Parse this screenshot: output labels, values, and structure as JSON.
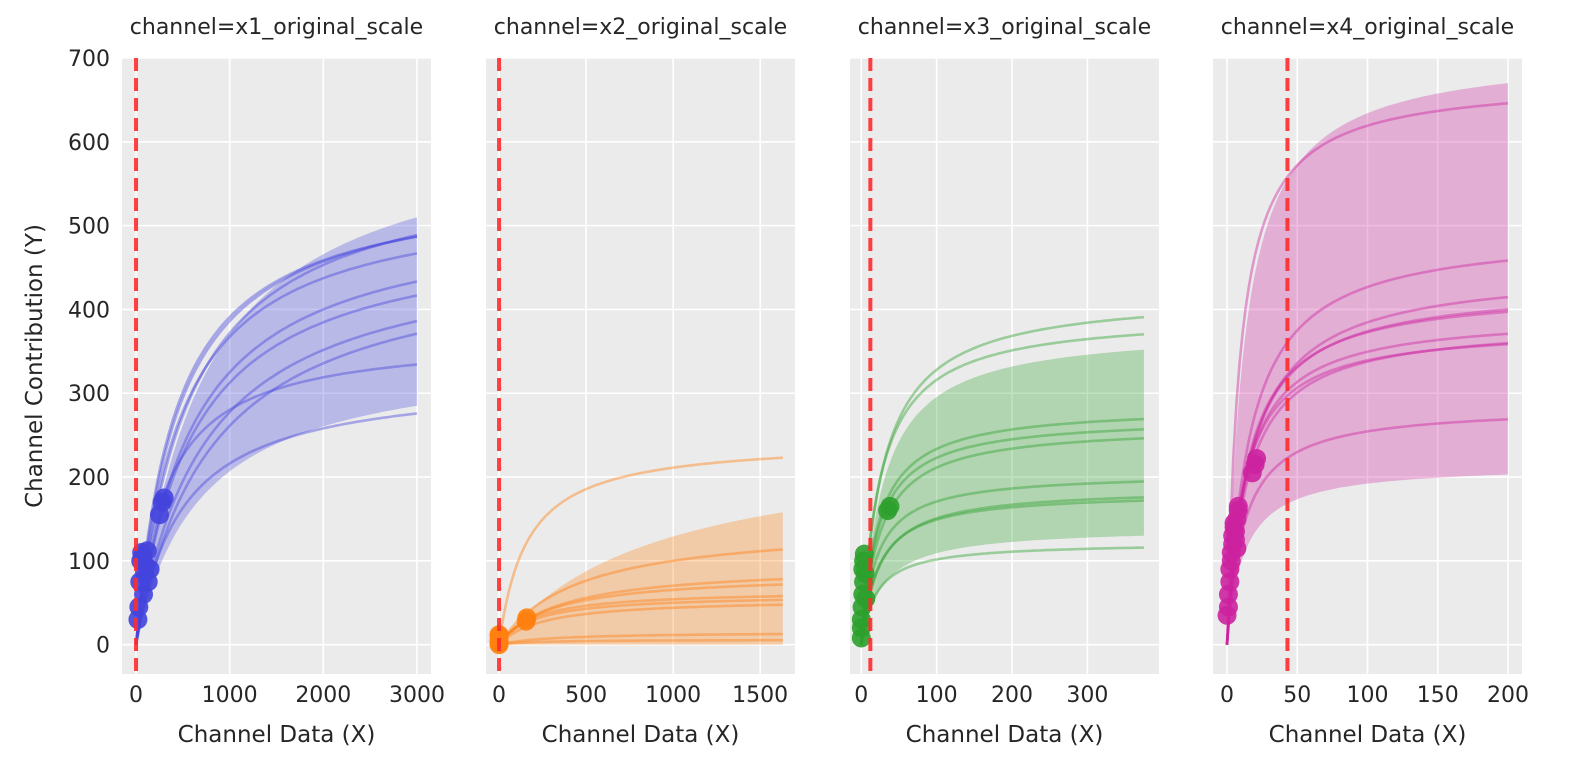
{
  "chart_data": [
    {
      "type": "line",
      "title": "channel=x1_original_scale",
      "xlabel": "Channel Data (X)",
      "ylabel": "Channel Contribution (Y)",
      "xlim": [
        -150,
        3150
      ],
      "ylim": [
        -35,
        700
      ],
      "xticks": [
        0,
        1000,
        2000,
        3000
      ],
      "yticks": [
        0,
        100,
        200,
        300,
        400,
        500,
        600,
        700
      ],
      "grid": true,
      "color": "#4444dd",
      "x_max": 3000,
      "reference_line_x": 0,
      "band": {
        "lower_end": 285,
        "upper_end": 510,
        "k": 700
      },
      "curves": [
        {
          "asymptote": 560,
          "k": 450
        },
        {
          "asymptote": 555,
          "k": 420
        },
        {
          "asymptote": 580,
          "k": 560
        },
        {
          "asymptote": 540,
          "k": 470
        },
        {
          "asymptote": 520,
          "k": 600
        },
        {
          "asymptote": 500,
          "k": 600
        },
        {
          "asymptote": 480,
          "k": 730
        },
        {
          "asymptote": 470,
          "k": 800
        },
        {
          "asymptote": 370,
          "k": 320
        },
        {
          "asymptote": 320,
          "k": 480
        }
      ],
      "points": [
        [
          20,
          30
        ],
        [
          30,
          45
        ],
        [
          40,
          75
        ],
        [
          50,
          100
        ],
        [
          60,
          110
        ],
        [
          70,
          105
        ],
        [
          80,
          60
        ],
        [
          90,
          85
        ],
        [
          100,
          95
        ],
        [
          120,
          112
        ],
        [
          130,
          75
        ],
        [
          150,
          90
        ],
        [
          250,
          155
        ],
        [
          280,
          170
        ],
        [
          300,
          175
        ]
      ]
    },
    {
      "type": "line",
      "title": "channel=x2_original_scale",
      "xlabel": "Channel Data (X)",
      "ylabel": "",
      "xlim": [
        -75,
        1700
      ],
      "ylim": [
        -35,
        700
      ],
      "xticks": [
        0,
        500,
        1000,
        1500
      ],
      "yticks": [
        0,
        100,
        200,
        300,
        400,
        500,
        600,
        700
      ],
      "grid": true,
      "color": "#ff7f0e",
      "x_max": 1630,
      "reference_line_x": 0,
      "band": {
        "lower_end": 0,
        "upper_end": 158,
        "k": 900
      },
      "curves": [
        {
          "asymptote": 245,
          "k": 160
        },
        {
          "asymptote": 145,
          "k": 450
        },
        {
          "asymptote": 95,
          "k": 350
        },
        {
          "asymptote": 85,
          "k": 300
        },
        {
          "asymptote": 65,
          "k": 200
        },
        {
          "asymptote": 60,
          "k": 200
        },
        {
          "asymptote": 55,
          "k": 250
        },
        {
          "asymptote": 15,
          "k": 300
        },
        {
          "asymptote": 6,
          "k": 200
        }
      ],
      "points": [
        [
          0,
          0
        ],
        [
          0,
          2
        ],
        [
          0,
          5
        ],
        [
          0,
          10
        ],
        [
          0,
          12
        ],
        [
          155,
          28
        ],
        [
          160,
          32
        ]
      ]
    },
    {
      "type": "line",
      "title": "channel=x3_original_scale",
      "xlabel": "Channel Data (X)",
      "ylabel": "",
      "xlim": [
        -15,
        395
      ],
      "ylim": [
        -35,
        700
      ],
      "xticks": [
        0,
        100,
        200,
        300
      ],
      "yticks": [
        0,
        100,
        200,
        300,
        400,
        500,
        600,
        700
      ],
      "grid": true,
      "color": "#2ca02c",
      "x_max": 375,
      "reference_line_x": 12,
      "band": {
        "lower_end": 130,
        "upper_end": 352,
        "k": 28
      },
      "curves": [
        {
          "asymptote": 420,
          "k": 28
        },
        {
          "asymptote": 395,
          "k": 25
        },
        {
          "asymptote": 285,
          "k": 22
        },
        {
          "asymptote": 272,
          "k": 22
        },
        {
          "asymptote": 262,
          "k": 24
        },
        {
          "asymptote": 205,
          "k": 20
        },
        {
          "asymptote": 187,
          "k": 24
        },
        {
          "asymptote": 182,
          "k": 22
        },
        {
          "asymptote": 122,
          "k": 20
        }
      ],
      "points": [
        [
          0,
          8
        ],
        [
          0,
          20
        ],
        [
          0,
          30
        ],
        [
          1,
          45
        ],
        [
          2,
          60
        ],
        [
          3,
          75
        ],
        [
          2,
          90
        ],
        [
          3,
          100
        ],
        [
          4,
          108
        ],
        [
          5,
          85
        ],
        [
          6,
          55
        ],
        [
          35,
          160
        ],
        [
          38,
          165
        ]
      ]
    },
    {
      "type": "line",
      "title": "channel=x4_original_scale",
      "xlabel": "Channel Data (X)",
      "ylabel": "",
      "xlim": [
        -10,
        210
      ],
      "ylim": [
        -35,
        700
      ],
      "xticks": [
        0,
        50,
        100,
        150,
        200
      ],
      "yticks": [
        0,
        100,
        200,
        300,
        400,
        500,
        600,
        700
      ],
      "grid": true,
      "color": "#cc22a0",
      "x_max": 200,
      "reference_line_x": 43,
      "band": {
        "lower_end": 203,
        "upper_end": 670,
        "k": 12
      },
      "curves": [
        {
          "asymptote": 675,
          "k": 9
        },
        {
          "asymptote": 495,
          "k": 16
        },
        {
          "asymptote": 450,
          "k": 17
        },
        {
          "asymptote": 430,
          "k": 15
        },
        {
          "asymptote": 425,
          "k": 14
        },
        {
          "asymptote": 395,
          "k": 13
        },
        {
          "asymptote": 385,
          "k": 14
        },
        {
          "asymptote": 380,
          "k": 12
        },
        {
          "asymptote": 285,
          "k": 12
        }
      ],
      "points": [
        [
          0,
          35
        ],
        [
          1,
          45
        ],
        [
          1,
          60
        ],
        [
          2,
          75
        ],
        [
          2,
          90
        ],
        [
          3,
          100
        ],
        [
          3,
          110
        ],
        [
          4,
          120
        ],
        [
          4,
          130
        ],
        [
          5,
          140
        ],
        [
          5,
          145
        ],
        [
          6,
          135
        ],
        [
          6,
          125
        ],
        [
          7,
          115
        ],
        [
          7,
          150
        ],
        [
          8,
          160
        ],
        [
          8,
          165
        ],
        [
          18,
          205
        ],
        [
          20,
          215
        ],
        [
          21,
          222
        ]
      ]
    }
  ]
}
